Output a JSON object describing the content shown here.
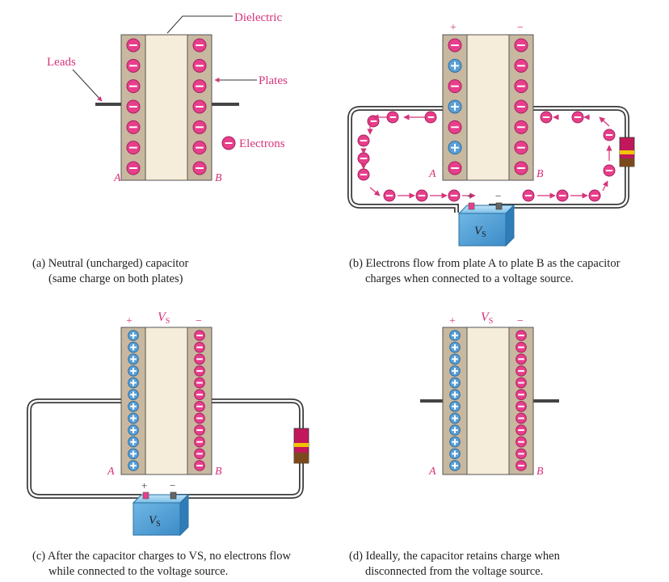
{
  "labels": {
    "dielectric": "Dielectric",
    "leads": "Leads",
    "plates": "Plates",
    "electrons": "Electrons",
    "plate_a": "A",
    "plate_b": "B",
    "plus": "+",
    "minus": "−",
    "vs_main": "V",
    "vs_sub": "S"
  },
  "colors": {
    "electron_fill": "#e83e8c",
    "positive_fill": "#5aa0d8",
    "plate_fill": "#c8b8a0",
    "dielectric_fill": "#f5ecd9",
    "accent_magenta": "#d6337a",
    "battery_blue": "#5aa9dc",
    "resistor_band": "#c2185b",
    "resistor_end": "#7a4a1e"
  },
  "panels": [
    {
      "id": "a",
      "caption_line1": "(a) Neutral (uncharged) capacitor",
      "caption_line2": "(same charge on both plates)",
      "left_plate_charges": [
        "-",
        "-",
        "-",
        "-",
        "-",
        "-",
        "-"
      ],
      "right_plate_charges": [
        "-",
        "-",
        "-",
        "-",
        "-",
        "-",
        "-"
      ]
    },
    {
      "id": "b",
      "caption_line1": "(b) Electrons flow from plate A to plate B as the capacitor",
      "caption_line2": "charges when connected to a voltage source.",
      "left_plate_charges": [
        "-",
        "+",
        "-",
        "+",
        "-",
        "+",
        "-"
      ],
      "right_plate_charges": [
        "-",
        "-",
        "-",
        "-",
        "-",
        "-",
        "-"
      ]
    },
    {
      "id": "c",
      "caption_line1": "(c) After the capacitor charges to VS, no electrons flow",
      "caption_line2": "while connected to the voltage source.",
      "left_plate_charges": [
        "+",
        "+",
        "+",
        "+",
        "+",
        "+",
        "+",
        "+",
        "+",
        "+",
        "+",
        "+"
      ],
      "right_plate_charges": [
        "-",
        "-",
        "-",
        "-",
        "-",
        "-",
        "-",
        "-",
        "-",
        "-",
        "-",
        "-"
      ]
    },
    {
      "id": "d",
      "caption_line1": "(d) Ideally, the capacitor retains charge when",
      "caption_line2": "disconnected from the voltage source.",
      "left_plate_charges": [
        "+",
        "+",
        "+",
        "+",
        "+",
        "+",
        "+",
        "+",
        "+",
        "+",
        "+",
        "+"
      ],
      "right_plate_charges": [
        "-",
        "-",
        "-",
        "-",
        "-",
        "-",
        "-",
        "-",
        "-",
        "-",
        "-",
        "-"
      ]
    }
  ]
}
